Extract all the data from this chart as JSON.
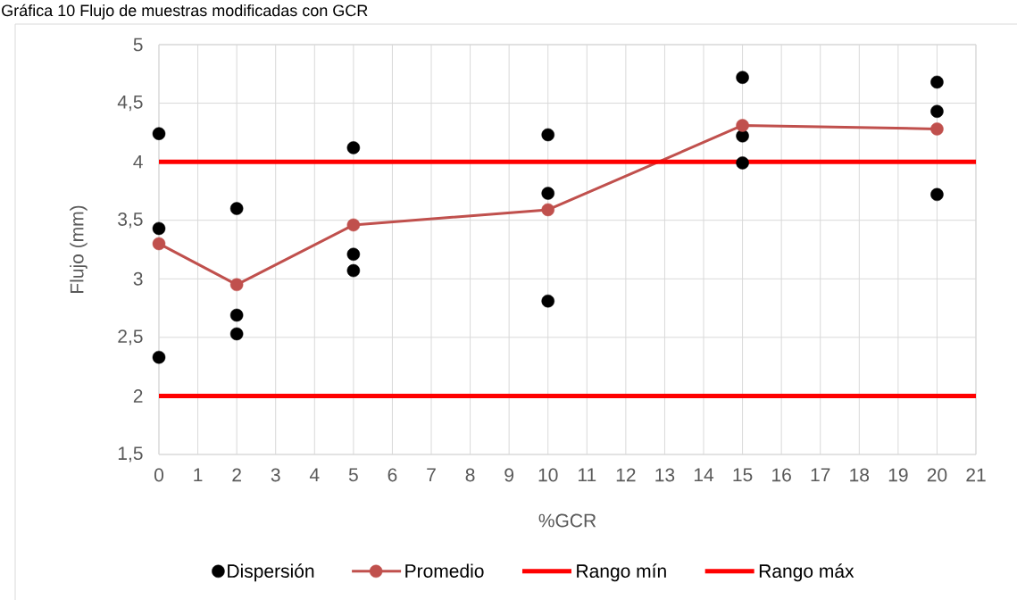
{
  "chart_data": {
    "type": "scatter",
    "title": "Gráfica 10 Flujo de muestras modificadas con GCR",
    "xlabel": "%GCR",
    "ylabel": "Flujo (mm)",
    "series": [
      {
        "name": "Dispersión",
        "color": "#000000",
        "marker": "circle",
        "x": [
          0,
          0,
          0,
          2,
          2,
          2,
          5,
          5,
          5,
          10,
          10,
          10,
          15,
          15,
          15,
          20,
          20,
          20
        ],
        "values": [
          4.24,
          3.43,
          2.33,
          3.6,
          2.69,
          2.53,
          4.12,
          3.21,
          3.07,
          4.23,
          3.73,
          2.81,
          4.72,
          4.22,
          3.99,
          4.68,
          4.43,
          3.72
        ]
      },
      {
        "name": "Promedio",
        "type": "line",
        "color": "#c0504d",
        "marker": "circle",
        "x": [
          0,
          2,
          5,
          10,
          15,
          20
        ],
        "values": [
          3.3,
          2.95,
          3.46,
          3.59,
          4.31,
          4.28
        ]
      },
      {
        "name": "Rango mín",
        "type": "line",
        "color": "#ff0000",
        "marker": "none",
        "x": [
          0,
          21
        ],
        "values": [
          2,
          2
        ]
      },
      {
        "name": "Rango máx",
        "type": "line",
        "color": "#ff0000",
        "marker": "none",
        "x": [
          0,
          21
        ],
        "values": [
          4,
          4
        ]
      }
    ],
    "xlim": [
      0,
      21
    ],
    "ylim": [
      1.5,
      5
    ],
    "xticks": [
      0,
      1,
      2,
      3,
      4,
      5,
      6,
      7,
      8,
      9,
      10,
      11,
      12,
      13,
      14,
      15,
      16,
      17,
      18,
      19,
      20,
      21
    ],
    "yticks": [
      {
        "value": 1.5,
        "label": "1,5"
      },
      2,
      {
        "value": 2.5,
        "label": "2,5"
      },
      3,
      {
        "value": 3.5,
        "label": "3,5"
      },
      4,
      {
        "value": 4.5,
        "label": "4,5"
      },
      5
    ],
    "grid": true,
    "legend": "bottom"
  }
}
